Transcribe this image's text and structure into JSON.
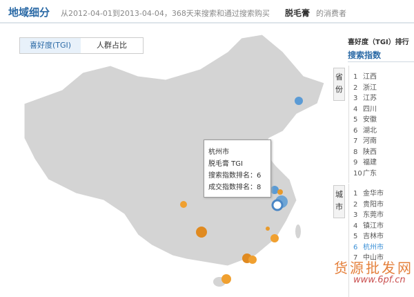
{
  "header": {
    "title": "地域细分",
    "subtitle": "从2012-04-01到2013-04-04，368天来搜索和通过搜索购买",
    "keyword": "脱毛膏",
    "suffix": "的消费者"
  },
  "tabs": [
    "喜好度(TGI)",
    "人群占比"
  ],
  "tooltip": {
    "city": "杭州市",
    "line1": "脱毛膏 TGI",
    "line2": "搜索指数排名：6",
    "line3": "成交指数排名：8"
  },
  "panel": {
    "title": "喜好度（TGI）排行",
    "subtitle": "搜索指数",
    "province_tab": "省份",
    "city_tab": "城市",
    "provinces": [
      {
        "rank": "1",
        "name": "江西"
      },
      {
        "rank": "2",
        "name": "浙江"
      },
      {
        "rank": "3",
        "name": "江苏"
      },
      {
        "rank": "4",
        "name": "四川"
      },
      {
        "rank": "5",
        "name": "安徽"
      },
      {
        "rank": "6",
        "name": "湖北"
      },
      {
        "rank": "7",
        "name": "河南"
      },
      {
        "rank": "8",
        "name": "陕西"
      },
      {
        "rank": "9",
        "name": "福建"
      },
      {
        "rank": "10",
        "name": "广东"
      }
    ],
    "cities": [
      {
        "rank": "1",
        "name": "金华市"
      },
      {
        "rank": "2",
        "name": "贵阳市"
      },
      {
        "rank": "3",
        "name": "东莞市"
      },
      {
        "rank": "4",
        "name": "镇江市"
      },
      {
        "rank": "5",
        "name": "吉林市"
      },
      {
        "rank": "6",
        "name": "杭州市"
      },
      {
        "rank": "7",
        "name": "中山市"
      }
    ]
  },
  "watermark": {
    "text": "货源批发网",
    "url": "www.6pf.cn"
  }
}
